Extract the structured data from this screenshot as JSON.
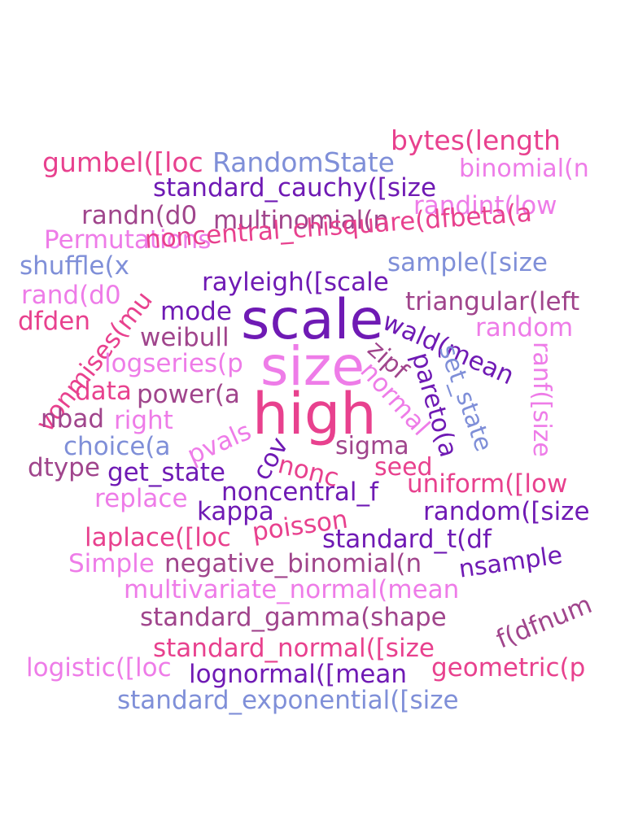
{
  "colors": {
    "pink": "#e8418e",
    "purple": "#6f1ab4",
    "blue": "#7f8fd8",
    "violet": "#ee7ce8",
    "plum": "#a0458c",
    "background": "#ffffff"
  },
  "words": [
    {
      "text": "scale",
      "color": "purple"
    },
    {
      "text": "size",
      "color": "violet"
    },
    {
      "text": "high",
      "color": "pink"
    },
    {
      "text": "bytes(length",
      "color": "pink"
    },
    {
      "text": "gumbel([loc",
      "color": "pink"
    },
    {
      "text": "RandomState",
      "color": "blue"
    },
    {
      "text": "binomial(n",
      "color": "violet"
    },
    {
      "text": "standard_cauchy([size",
      "color": "purple"
    },
    {
      "text": "randint(low",
      "color": "violet"
    },
    {
      "text": "randn(d0",
      "color": "plum"
    },
    {
      "text": "multinomial(n",
      "color": "plum"
    },
    {
      "text": "Permutations",
      "color": "violet"
    },
    {
      "text": "noncentral_chisquare(dfbeta(a",
      "color": "pink"
    },
    {
      "text": "shuffle(x",
      "color": "blue"
    },
    {
      "text": "sample([size",
      "color": "blue"
    },
    {
      "text": "rayleigh([scale",
      "color": "purple"
    },
    {
      "text": "rand(d0",
      "color": "violet"
    },
    {
      "text": "triangular(left",
      "color": "plum"
    },
    {
      "text": "dfden",
      "color": "pink"
    },
    {
      "text": "mode",
      "color": "purple"
    },
    {
      "text": "random",
      "color": "violet"
    },
    {
      "text": "weibull",
      "color": "plum"
    },
    {
      "text": "vonmises(mu",
      "color": "pink"
    },
    {
      "text": "wald(mean",
      "color": "purple"
    },
    {
      "text": "zipf",
      "color": "plum"
    },
    {
      "text": "normal",
      "color": "violet"
    },
    {
      "text": "pareto(a",
      "color": "purple"
    },
    {
      "text": "set_state",
      "color": "blue"
    },
    {
      "text": "ranf([size",
      "color": "violet"
    },
    {
      "text": "logseries(p",
      "color": "violet"
    },
    {
      "text": "data",
      "color": "pink"
    },
    {
      "text": "power(a",
      "color": "plum"
    },
    {
      "text": "nbad",
      "color": "plum"
    },
    {
      "text": "right",
      "color": "violet"
    },
    {
      "text": "pvals",
      "color": "violet"
    },
    {
      "text": "choice(a",
      "color": "blue"
    },
    {
      "text": "cov",
      "color": "purple"
    },
    {
      "text": "sigma",
      "color": "plum"
    },
    {
      "text": "dtype",
      "color": "plum"
    },
    {
      "text": "get_state",
      "color": "purple"
    },
    {
      "text": "nonc",
      "color": "pink"
    },
    {
      "text": "seed",
      "color": "pink"
    },
    {
      "text": "uniform([low",
      "color": "pink"
    },
    {
      "text": "replace",
      "color": "violet"
    },
    {
      "text": "noncentral_f",
      "color": "purple"
    },
    {
      "text": "kappa",
      "color": "purple"
    },
    {
      "text": "poisson",
      "color": "pink"
    },
    {
      "text": "random([size",
      "color": "purple"
    },
    {
      "text": "laplace([loc",
      "color": "pink"
    },
    {
      "text": "standard_t(df",
      "color": "purple"
    },
    {
      "text": "nsample",
      "color": "purple"
    },
    {
      "text": "Simple",
      "color": "violet"
    },
    {
      "text": "negative_binomial(n",
      "color": "plum"
    },
    {
      "text": "multivariate_normal(mean",
      "color": "violet"
    },
    {
      "text": "f(dfnum",
      "color": "plum"
    },
    {
      "text": "standard_gamma(shape",
      "color": "plum"
    },
    {
      "text": "standard_normal([size",
      "color": "pink"
    },
    {
      "text": "logistic([loc",
      "color": "violet"
    },
    {
      "text": "lognormal([mean",
      "color": "purple"
    },
    {
      "text": "geometric(p",
      "color": "pink"
    },
    {
      "text": "standard_exponential([size",
      "color": "blue"
    }
  ]
}
